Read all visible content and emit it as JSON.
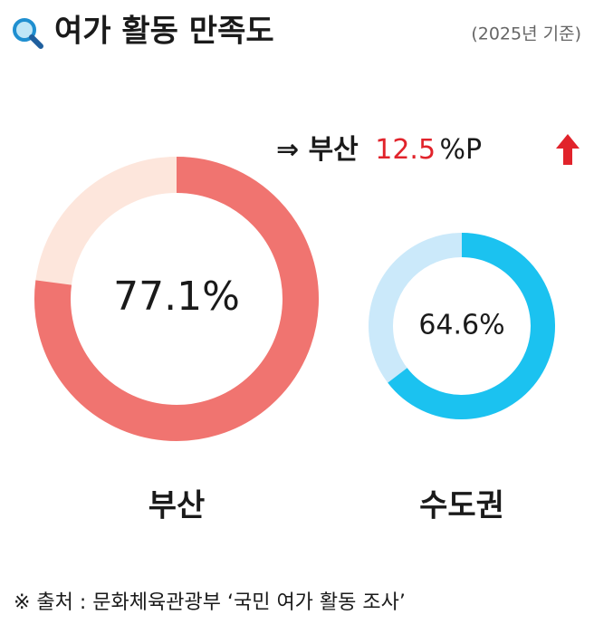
{
  "chart_data": {
    "type": "donut",
    "title": "여가 활동 만족도",
    "subtitle": "(2025년 기준)",
    "annotation": {
      "prefix": "⇒ 부산",
      "value": 12.5,
      "unit": "%P"
    },
    "categories": [
      "부산",
      "수도권"
    ],
    "values": [
      77.1,
      64.6
    ],
    "value_labels": [
      "77.1%",
      "64.6%"
    ],
    "colors": [
      "#f07470",
      "#1bc2f0"
    ],
    "track_colors": [
      "#fde6dc",
      "#cbe9fa"
    ],
    "ylim": [
      0,
      100
    ],
    "source": "※ 출처 : 문화체육관광부 ‘국민 여가 활동 조사’"
  }
}
